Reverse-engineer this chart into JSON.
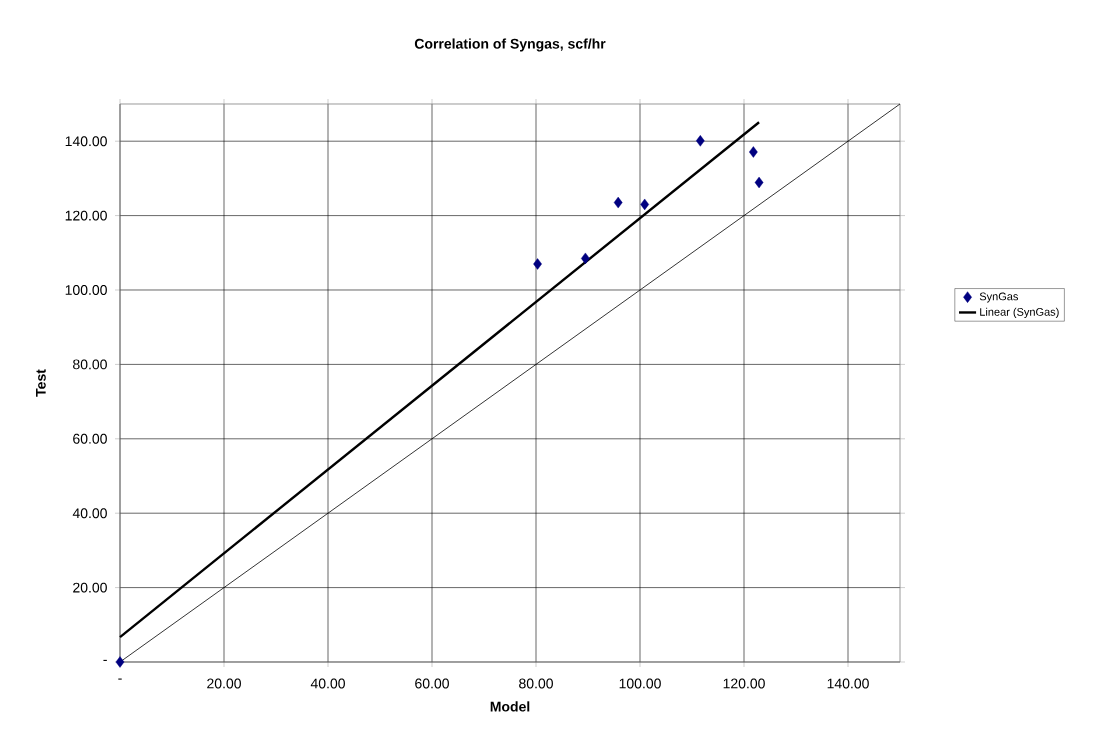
{
  "chart_data": {
    "type": "scatter",
    "title": "Correlation of Syngas, scf/hr",
    "xlabel": "Model",
    "ylabel": "Test",
    "xlim": [
      0,
      150
    ],
    "ylim": [
      0,
      150
    ],
    "xticks": [
      {
        "value": 0,
        "label": "-"
      },
      {
        "value": 20,
        "label": "20.00"
      },
      {
        "value": 40,
        "label": "40.00"
      },
      {
        "value": 60,
        "label": "60.00"
      },
      {
        "value": 80,
        "label": "80.00"
      },
      {
        "value": 100,
        "label": "100.00"
      },
      {
        "value": 120,
        "label": "120.00"
      },
      {
        "value": 140,
        "label": "140.00"
      }
    ],
    "yticks": [
      {
        "value": 0,
        "label": "-"
      },
      {
        "value": 20,
        "label": "20.00"
      },
      {
        "value": 40,
        "label": "40.00"
      },
      {
        "value": 60,
        "label": "60.00"
      },
      {
        "value": 80,
        "label": "80.00"
      },
      {
        "value": 100,
        "label": "100.00"
      },
      {
        "value": 120,
        "label": "120.00"
      },
      {
        "value": 140,
        "label": "140.00"
      }
    ],
    "grid": true,
    "legend": "right",
    "series": [
      {
        "name": "SynGas",
        "marker": "diamond",
        "color": "#000080",
        "x": [
          0,
          80.3,
          89.5,
          95.8,
          100.9,
          111.6,
          121.8,
          122.9
        ],
        "values": [
          0,
          107.0,
          108.5,
          123.5,
          123.0,
          140.1,
          137.1,
          128.9
        ]
      },
      {
        "name": "Linear (SynGas)",
        "type": "line",
        "marker": "none",
        "color": "#000000",
        "x": [
          0,
          122.9
        ],
        "values": [
          6.7,
          145.1
        ]
      },
      {
        "type": "line",
        "marker": "none",
        "color": "#000000",
        "x": [
          0,
          150
        ],
        "values": [
          0,
          150
        ]
      }
    ]
  }
}
